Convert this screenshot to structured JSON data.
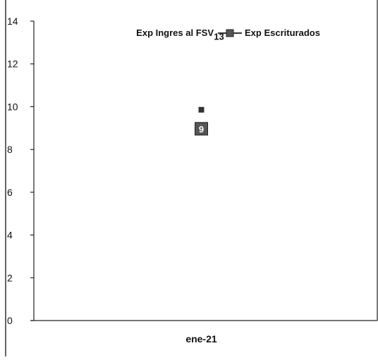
{
  "chart_data": {
    "type": "line",
    "title": "",
    "xlabel": "",
    "ylabel": "",
    "categories": [
      "ene-21"
    ],
    "ylim": [
      0,
      14
    ],
    "yticks": [
      0,
      2,
      4,
      6,
      8,
      10,
      12,
      14
    ],
    "grid": false,
    "legend_position": "top-center",
    "series": [
      {
        "name": "Exp Ingres al FSV",
        "values": [
          13
        ],
        "data_labels": [
          "13"
        ],
        "color": "#333333",
        "marker": "none"
      },
      {
        "name": "Exp Escriturados",
        "values": [
          9
        ],
        "data_labels": [
          "9"
        ],
        "color": "#333333",
        "marker": "square"
      }
    ]
  }
}
